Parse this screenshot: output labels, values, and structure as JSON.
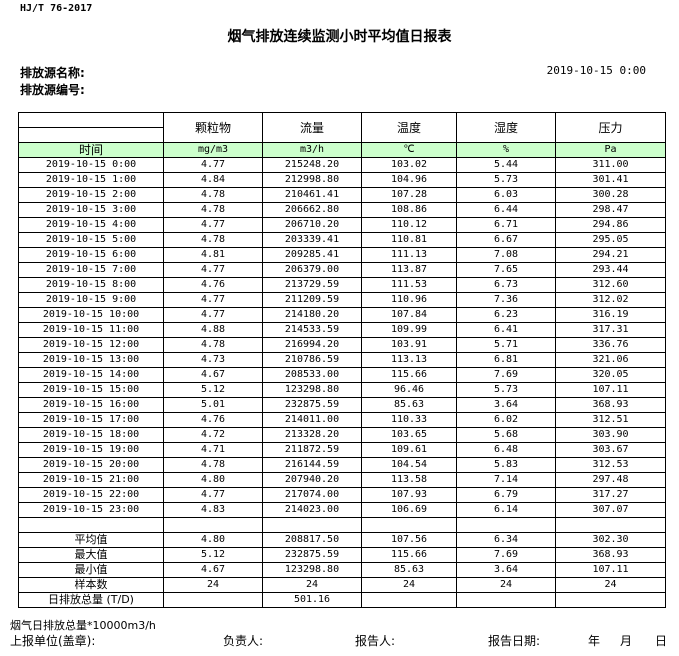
{
  "standard": "HJ/T  76-2017",
  "title": "烟气排放连续监测小时平均值日报表",
  "source_name_label": "排放源名称:",
  "source_no_label": "排放源编号:",
  "report_datetime": "2019-10-15 0:00",
  "table": {
    "columns": [
      "颗粒物",
      "流量",
      "温度",
      "湿度",
      "压力"
    ],
    "time_label": "时间",
    "units": [
      "mg/m3",
      "m3/h",
      "℃",
      "%",
      "Pa"
    ],
    "rows": [
      {
        "time": "2019-10-15 0:00",
        "values": [
          "4.77",
          "215248.20",
          "103.02",
          "5.44",
          "311.00"
        ]
      },
      {
        "time": "2019-10-15 1:00",
        "values": [
          "4.84",
          "212998.80",
          "104.96",
          "5.73",
          "301.41"
        ]
      },
      {
        "time": "2019-10-15 2:00",
        "values": [
          "4.78",
          "210461.41",
          "107.28",
          "6.03",
          "300.28"
        ]
      },
      {
        "time": "2019-10-15 3:00",
        "values": [
          "4.78",
          "206662.80",
          "108.86",
          "6.44",
          "298.47"
        ]
      },
      {
        "time": "2019-10-15 4:00",
        "values": [
          "4.77",
          "206710.20",
          "110.12",
          "6.71",
          "294.86"
        ]
      },
      {
        "time": "2019-10-15 5:00",
        "values": [
          "4.78",
          "203339.41",
          "110.81",
          "6.67",
          "295.05"
        ]
      },
      {
        "time": "2019-10-15 6:00",
        "values": [
          "4.81",
          "209285.41",
          "111.13",
          "7.08",
          "294.21"
        ]
      },
      {
        "time": "2019-10-15 7:00",
        "values": [
          "4.77",
          "206379.00",
          "113.87",
          "7.65",
          "293.44"
        ]
      },
      {
        "time": "2019-10-15 8:00",
        "values": [
          "4.76",
          "213729.59",
          "111.53",
          "6.73",
          "312.60"
        ]
      },
      {
        "time": "2019-10-15 9:00",
        "values": [
          "4.77",
          "211209.59",
          "110.96",
          "7.36",
          "312.02"
        ]
      },
      {
        "time": "2019-10-15 10:00",
        "values": [
          "4.77",
          "214180.20",
          "107.84",
          "6.23",
          "316.19"
        ]
      },
      {
        "time": "2019-10-15 11:00",
        "values": [
          "4.88",
          "214533.59",
          "109.99",
          "6.41",
          "317.31"
        ]
      },
      {
        "time": "2019-10-15 12:00",
        "values": [
          "4.78",
          "216994.20",
          "103.91",
          "5.71",
          "336.76"
        ]
      },
      {
        "time": "2019-10-15 13:00",
        "values": [
          "4.73",
          "210786.59",
          "113.13",
          "6.81",
          "321.06"
        ]
      },
      {
        "time": "2019-10-15 14:00",
        "values": [
          "4.67",
          "208533.00",
          "115.66",
          "7.69",
          "320.05"
        ]
      },
      {
        "time": "2019-10-15 15:00",
        "values": [
          "5.12",
          "123298.80",
          "96.46",
          "5.73",
          "107.11"
        ]
      },
      {
        "time": "2019-10-15 16:00",
        "values": [
          "5.01",
          "232875.59",
          "85.63",
          "3.64",
          "368.93"
        ]
      },
      {
        "time": "2019-10-15 17:00",
        "values": [
          "4.76",
          "214011.00",
          "110.33",
          "6.02",
          "312.51"
        ]
      },
      {
        "time": "2019-10-15 18:00",
        "values": [
          "4.72",
          "213328.20",
          "103.65",
          "5.68",
          "303.90"
        ]
      },
      {
        "time": "2019-10-15 19:00",
        "values": [
          "4.71",
          "211872.59",
          "109.61",
          "6.48",
          "303.67"
        ]
      },
      {
        "time": "2019-10-15 20:00",
        "values": [
          "4.78",
          "216144.59",
          "104.54",
          "5.83",
          "312.53"
        ]
      },
      {
        "time": "2019-10-15 21:00",
        "values": [
          "4.80",
          "207940.20",
          "113.58",
          "7.14",
          "297.48"
        ]
      },
      {
        "time": "2019-10-15 22:00",
        "values": [
          "4.77",
          "217074.00",
          "107.93",
          "6.79",
          "317.27"
        ]
      },
      {
        "time": "2019-10-15 23:00",
        "values": [
          "4.83",
          "214023.00",
          "106.69",
          "6.14",
          "307.07"
        ]
      }
    ],
    "summary": [
      {
        "label": "平均值",
        "values": [
          "4.80",
          "208817.50",
          "107.56",
          "6.34",
          "302.30"
        ]
      },
      {
        "label": "最大值",
        "values": [
          "5.12",
          "232875.59",
          "115.66",
          "7.69",
          "368.93"
        ]
      },
      {
        "label": "最小值",
        "values": [
          "4.67",
          "123298.80",
          "85.63",
          "3.64",
          "107.11"
        ]
      },
      {
        "label": "样本数",
        "values": [
          "24",
          "24",
          "24",
          "24",
          "24"
        ]
      },
      {
        "label": "日排放总量 (T/D)",
        "values": [
          "",
          "501.16",
          "",
          "",
          ""
        ]
      }
    ]
  },
  "footer": {
    "note": "烟气日排放总量*10000m3/h",
    "unit_label": "上报单位(盖章):",
    "responsible_label": "负责人:",
    "reporter_label": "报告人:",
    "report_date_label": "报告日期:",
    "year": "年",
    "month": "月",
    "day": "日"
  },
  "colors": {
    "unit_row_bg": "#ccffcc",
    "border": "#000000"
  }
}
